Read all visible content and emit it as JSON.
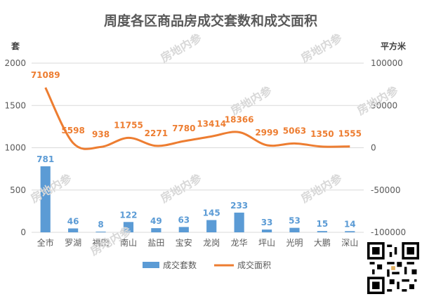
{
  "chart_data": {
    "type": "bar",
    "title": "周度各区商品房成交套数和成交面积",
    "categories": [
      "全市",
      "罗湖",
      "福田",
      "南山",
      "盐田",
      "宝安",
      "龙岗",
      "龙华",
      "坪山",
      "光明",
      "大鹏",
      "深山"
    ],
    "series": [
      {
        "name": "成交套数",
        "type": "bar",
        "axis": "left",
        "color": "#5b9bd5",
        "values": [
          781,
          46,
          8,
          122,
          49,
          63,
          145,
          233,
          33,
          53,
          15,
          14
        ]
      },
      {
        "name": "成交面积",
        "type": "line",
        "axis": "right",
        "color": "#ed7d31",
        "values": [
          71089,
          5598,
          938,
          11755,
          2271,
          7780,
          13414,
          18366,
          2999,
          5063,
          1350,
          1555
        ]
      }
    ],
    "left_axis": {
      "label": "套",
      "ylim": [
        0,
        2000
      ],
      "ticks": [
        "0",
        "500",
        "1000",
        "1500",
        "2000"
      ]
    },
    "right_axis": {
      "label": "平方米",
      "ylim": [
        -100000,
        100000
      ],
      "ticks": [
        "-100000",
        "-50000",
        "0",
        "50000",
        "100000"
      ]
    },
    "legend": {
      "position": "bottom",
      "items": [
        "成交套数",
        "成交面积"
      ]
    },
    "grid": true
  },
  "watermark": "房地内参"
}
